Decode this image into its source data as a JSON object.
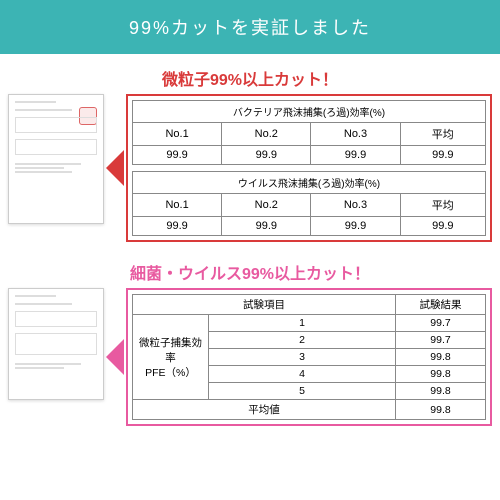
{
  "banner": "99%カットを実証しました",
  "section1": {
    "headline": "微粒子99%以上カット！",
    "headline_color": "#d93a3a",
    "border_color": "#d93a3a",
    "arrow_color": "#d93a3a",
    "table_a": {
      "title": "バクテリア飛沫捕集(ろ過)効率(%)",
      "headers": [
        "No.1",
        "No.2",
        "No.3",
        "平均"
      ],
      "row": [
        "99.9",
        "99.9",
        "99.9",
        "99.9"
      ]
    },
    "table_b": {
      "title": "ウイルス飛沫捕集(ろ過)効率(%)",
      "headers": [
        "No.1",
        "No.2",
        "No.3",
        "平均"
      ],
      "row": [
        "99.9",
        "99.9",
        "99.9",
        "99.9"
      ]
    }
  },
  "section2": {
    "headline": "細菌・ウイルス99%以上カット！",
    "headline_color": "#e85aa0",
    "border_color": "#e85aa0",
    "arrow_color": "#e85aa0",
    "table": {
      "col1": "試験項目",
      "col2": "試験結果",
      "rowlabel": "微粒子捕集効率\nPFE（%）",
      "rows": [
        [
          "1",
          "99.7"
        ],
        [
          "2",
          "99.7"
        ],
        [
          "3",
          "99.8"
        ],
        [
          "4",
          "99.8"
        ],
        [
          "5",
          "99.8"
        ]
      ],
      "avg_label": "平均値",
      "avg_value": "99.8"
    }
  }
}
